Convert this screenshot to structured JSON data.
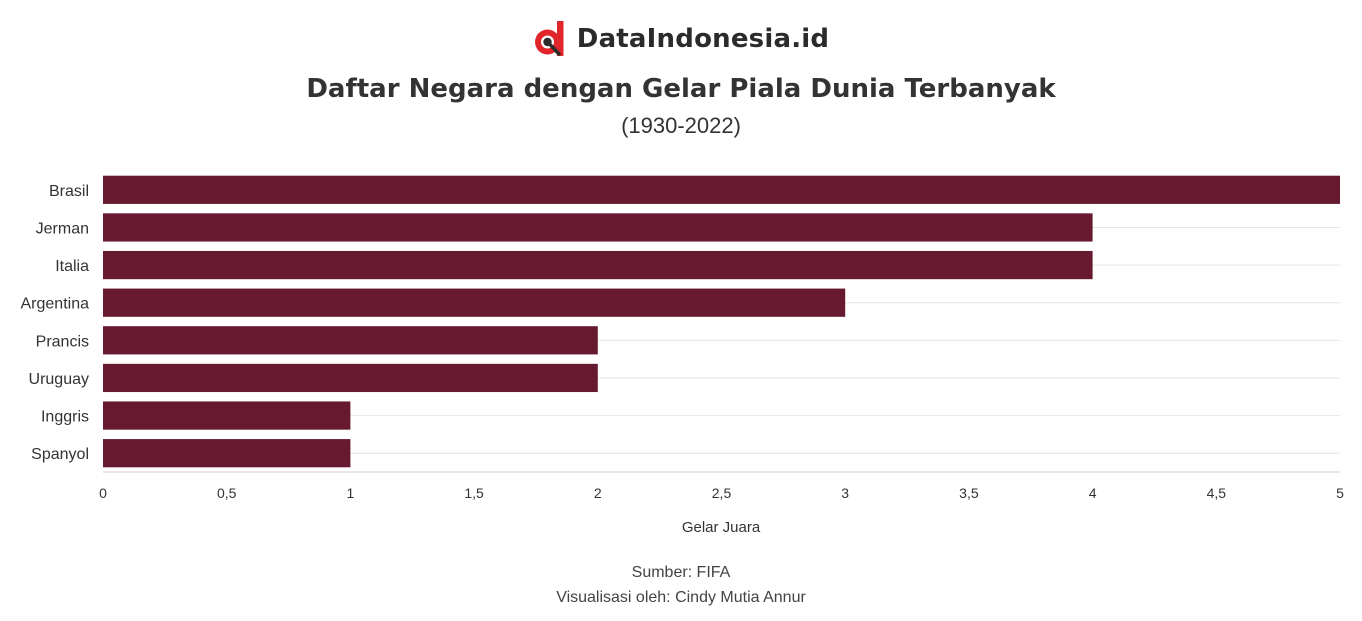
{
  "brand": {
    "name": "DataIndonesia.id",
    "logo_icon": "datain-d-magnifier-icon",
    "colors": {
      "red": "#e0262b",
      "dark": "#2b2b2b"
    }
  },
  "chart_data": {
    "type": "bar",
    "orientation": "horizontal",
    "title": "Daftar Negara dengan Gelar Piala Dunia Terbanyak",
    "subtitle": "(1930-2022)",
    "categories": [
      "Brasil",
      "Jerman",
      "Italia",
      "Argentina",
      "Prancis",
      "Uruguay",
      "Inggris",
      "Spanyol"
    ],
    "values": [
      5,
      4,
      4,
      3,
      2,
      2,
      1,
      1
    ],
    "xlabel": "Gelar Juara",
    "ylabel": "",
    "xlim": [
      0,
      5
    ],
    "xticks": [
      0,
      0.5,
      1,
      1.5,
      2,
      2.5,
      3,
      3.5,
      4,
      4.5,
      5
    ],
    "xtick_labels": [
      "0",
      "0,5",
      "1",
      "1,5",
      "2",
      "2,5",
      "3",
      "3,5",
      "4",
      "4,5",
      "5"
    ],
    "grid": true,
    "bar_color": "#66192f"
  },
  "footer": {
    "source": "Sumber: FIFA",
    "credit": "Visualisasi oleh: Cindy Mutia Annur"
  }
}
